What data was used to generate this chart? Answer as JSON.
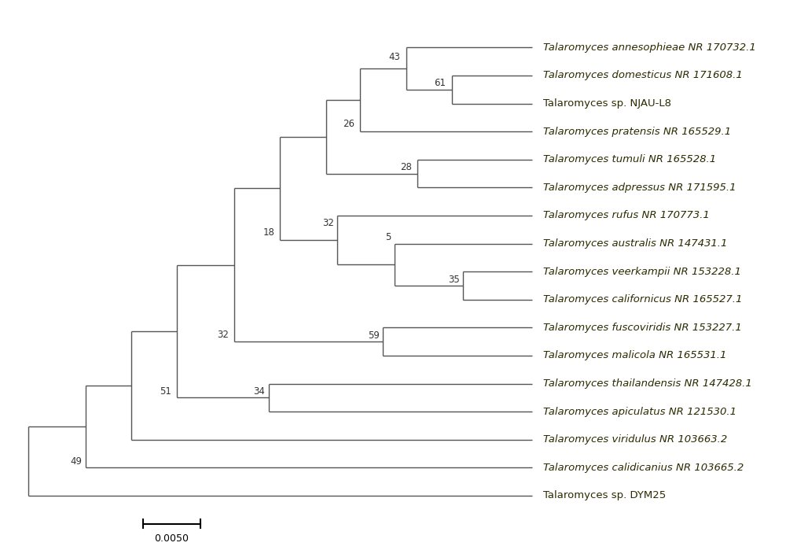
{
  "taxa": [
    "Talaromyces annesophieae NR 170732.1",
    "Talaromyces domesticus NR 171608.1",
    "Talaromyces sp. NJAU-L8",
    "Talaromyces pratensis NR 165529.1",
    "Talaromyces tumuli NR 165528.1",
    "Talaromyces adpressus NR 171595.1",
    "Talaromyces rufus NR 170773.1",
    "Talaromyces australis NR 147431.1",
    "Talaromyces veerkampii NR 153228.1",
    "Talaromyces californicus NR 165527.1",
    "Talaromyces fuscoviridis NR 153227.1",
    "Talaromyces malicola NR 165531.1",
    "Talaromyces thailandensis NR 147428.1",
    "Talaromyces apiculatus NR 121530.1",
    "Talaromyces viridulus NR 103663.2",
    "Talaromyces calidicanius NR 103665.2",
    "Talaromyces sp. DYM25"
  ],
  "line_color": "#555555",
  "text_color": "#2b2b00",
  "bg_color": "#ffffff",
  "scale_bar_value": "0.0050",
  "font_size": 9.5
}
